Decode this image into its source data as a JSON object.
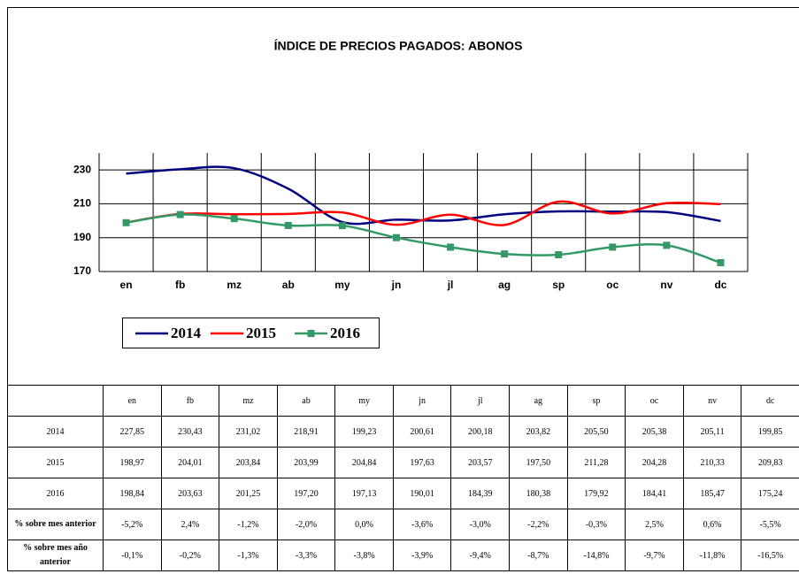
{
  "chart_data": {
    "type": "line",
    "title": "ÍNDICE DE PRECIOS PAGADOS: ABONOS",
    "categories": [
      "en",
      "fb",
      "mz",
      "ab",
      "my",
      "jn",
      "jl",
      "ag",
      "sp",
      "oc",
      "nv",
      "dc"
    ],
    "ylim": [
      170,
      240
    ],
    "yticks": [
      170,
      190,
      210,
      230
    ],
    "grid": true,
    "series": [
      {
        "name": "2014",
        "color": "#000080",
        "marker": false,
        "values": [
          227.85,
          230.43,
          231.02,
          218.91,
          199.23,
          200.61,
          200.18,
          203.82,
          205.5,
          205.38,
          205.11,
          199.85
        ],
        "value_labels": [
          "227,85",
          "230,43",
          "231,02",
          "218,91",
          "199,23",
          "200,61",
          "200,18",
          "203,82",
          "205,50",
          "205,38",
          "205,11",
          "199,85"
        ]
      },
      {
        "name": "2015",
        "color": "#ff0000",
        "marker": false,
        "values": [
          198.97,
          204.01,
          203.84,
          203.99,
          204.84,
          197.63,
          203.57,
          197.5,
          211.28,
          204.28,
          210.33,
          209.83
        ],
        "value_labels": [
          "198,97",
          "204,01",
          "203,84",
          "203,99",
          "204,84",
          "197,63",
          "203,57",
          "197,50",
          "211,28",
          "204,28",
          "210,33",
          "209,83"
        ]
      },
      {
        "name": "2016",
        "color": "#339966",
        "marker": true,
        "values": [
          198.84,
          203.63,
          201.25,
          197.2,
          197.13,
          190.01,
          184.39,
          180.38,
          179.92,
          184.41,
          185.47,
          175.24
        ],
        "value_labels": [
          "198,84",
          "203,63",
          "201,25",
          "197,20",
          "197,13",
          "190,01",
          "184,39",
          "180,38",
          "179,92",
          "184,41",
          "185,47",
          "175,24"
        ]
      }
    ]
  },
  "table": {
    "rows": [
      {
        "label": "% sobre mes anterior",
        "values": [
          "-5,2%",
          "2,4%",
          "-1,2%",
          "-2,0%",
          "0,0%",
          "-3,6%",
          "-3,0%",
          "-2,2%",
          "-0,3%",
          "2,5%",
          "0,6%",
          "-5,5%"
        ]
      },
      {
        "label": "% sobre mes año anterior",
        "values": [
          "-0,1%",
          "-0,2%",
          "-1,3%",
          "-3,3%",
          "-3,8%",
          "-3,9%",
          "-9,4%",
          "-8,7%",
          "-14,8%",
          "-9,7%",
          "-11,8%",
          "-16,5%"
        ]
      }
    ]
  }
}
